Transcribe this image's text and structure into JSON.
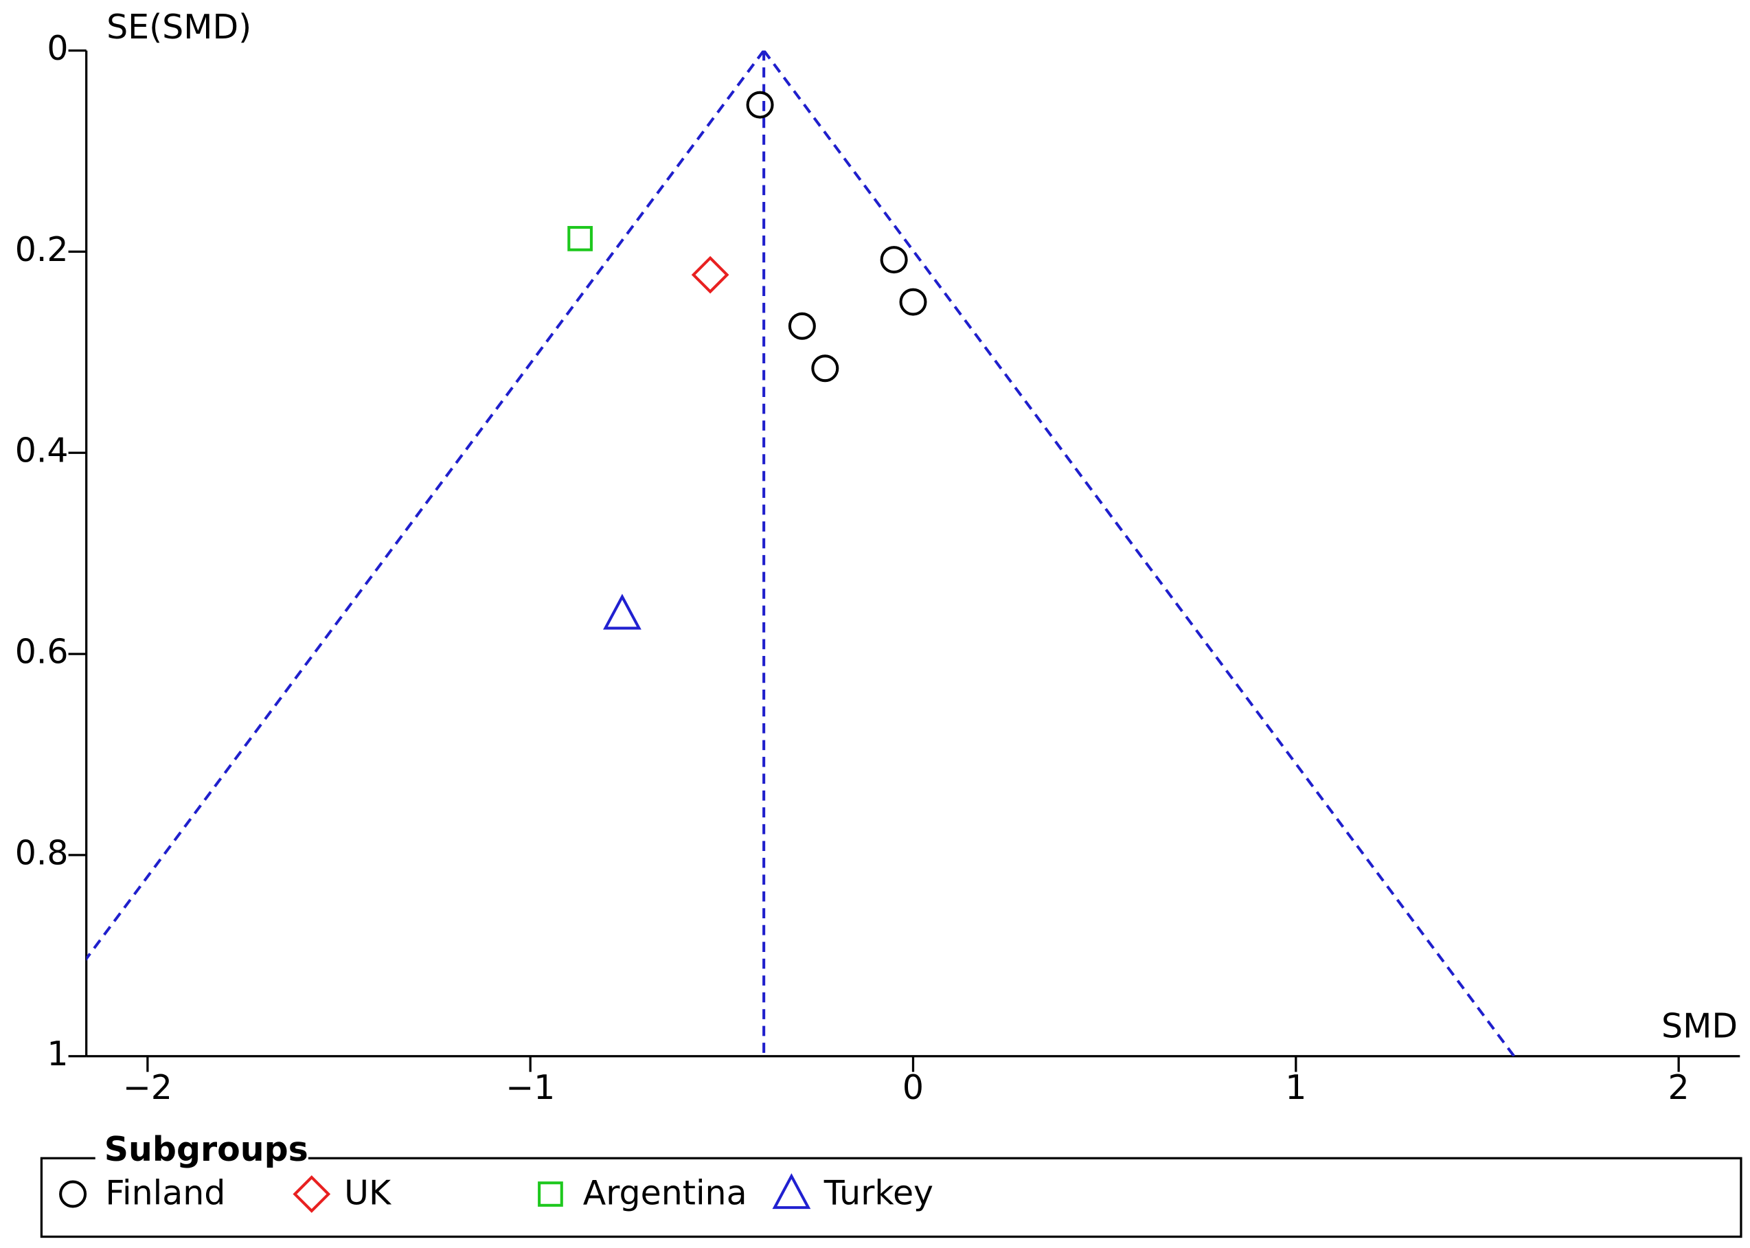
{
  "chart_data": {
    "type": "scatter",
    "x_label": "SMD",
    "y_label": "SE(SMD)",
    "xlim": [
      -2.16,
      2.16
    ],
    "ylim": [
      0,
      1
    ],
    "y_inverted": true,
    "xticks": [
      {
        "value": -2,
        "label": "−2"
      },
      {
        "value": -1,
        "label": "−1"
      },
      0,
      1,
      2
    ],
    "yticks": [
      0,
      0.2,
      0.4,
      0.6,
      0.8,
      1
    ],
    "pooled_smd": -0.39,
    "ci_z": 1.96,
    "funnel_color": "#1f1fcc",
    "legend_title": "Subgroups",
    "series": [
      {
        "name": "Finland",
        "color": "#000000",
        "marker": "circle",
        "x": [
          -0.4,
          -0.05,
          0.0,
          -0.29,
          -0.23
        ],
        "values": [
          0.054,
          0.208,
          0.25,
          0.274,
          0.316
        ]
      },
      {
        "name": "UK",
        "color": "#e82020",
        "marker": "diamond",
        "x": [
          -0.53
        ],
        "values": [
          0.223
        ]
      },
      {
        "name": "Argentina",
        "color": "#1ec81e",
        "marker": "square",
        "x": [
          -0.87
        ],
        "values": [
          0.187
        ]
      },
      {
        "name": "Turkey",
        "color": "#2020d0",
        "marker": "triangle",
        "x": [
          -0.76
        ],
        "values": [
          0.561
        ]
      }
    ]
  }
}
